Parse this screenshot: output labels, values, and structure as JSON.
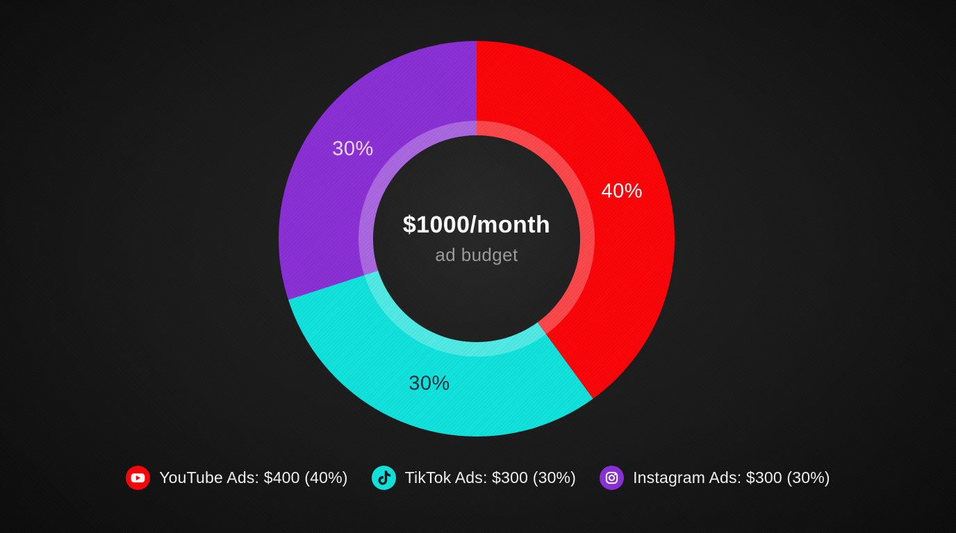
{
  "chart_data": {
    "type": "pie",
    "donut": true,
    "title": "$1000/month",
    "subtitle": "ad budget",
    "labels": [
      "YouTube Ads",
      "TikTok Ads",
      "Instagram Ads"
    ],
    "values": [
      400,
      300,
      300
    ],
    "percents": [
      40,
      30,
      30
    ],
    "total": 1000,
    "colors": [
      "#fa0408",
      "#10e2dc",
      "#8a2fd5"
    ],
    "slice_labels": [
      "40%",
      "30%",
      "30%"
    ],
    "slice_label_colors": [
      "#ffffff",
      "#12313c",
      "#eedcfb"
    ],
    "start_angle_deg": 0,
    "direction": "clockwise",
    "first_slice_at_top": "TikTok Ads",
    "legend_position": "bottom"
  },
  "center": {
    "title": "$1000/month",
    "subtitle": "ad budget"
  },
  "legend": {
    "items": [
      {
        "icon": "youtube-icon",
        "label": "YouTube Ads: $400 (40%)",
        "color": "#fa0408"
      },
      {
        "icon": "tiktok-icon",
        "label": "TikTok Ads: $300 (30%)",
        "color": "#10e2dc"
      },
      {
        "icon": "instagram-icon",
        "label": "Instagram Ads: $300 (30%)",
        "color": "#8a2fd5"
      }
    ]
  }
}
